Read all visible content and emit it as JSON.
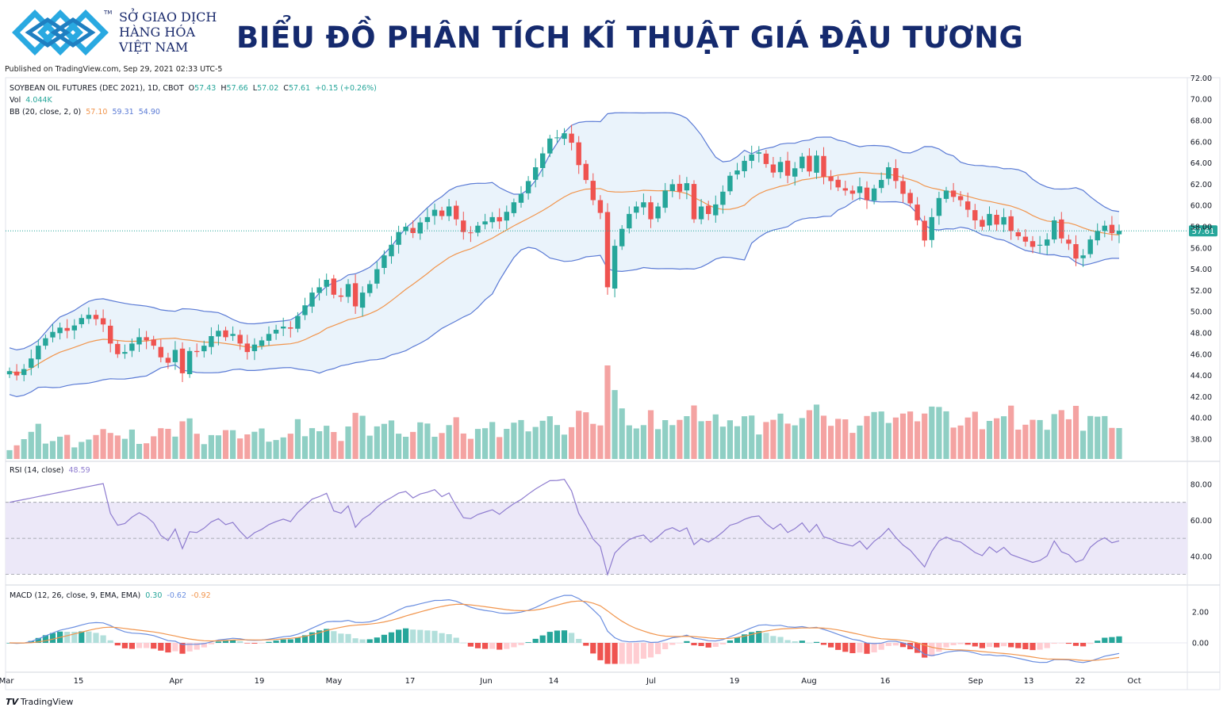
{
  "header": {
    "org_line1": "SỞ GIAO DỊCH",
    "org_line2": "HÀNG HÓA",
    "org_line3": "VIỆT NAM",
    "tm": "TM",
    "title": "BIỂU ĐỒ PHÂN TÍCH KĨ THUẬT GIÁ ĐẬU TƯƠNG",
    "logo_icon": "mxv-diamond-logo-icon",
    "brand_color": "#1a2a6c",
    "logo_color": "#29a9e1"
  },
  "published": "Published on TradingView.com, Sep 29, 2021 02:33 UTC-5",
  "legend": {
    "symbol": "SOYBEAN OIL FUTURES (DEC 2021), 1D, CBOT",
    "o_label": "O",
    "o_value": "57.43",
    "h_label": "H",
    "h_value": "57.66",
    "l_label": "L",
    "l_value": "57.02",
    "c_label": "C",
    "c_value": "57.61",
    "change": "+0.15 (+0.26%)",
    "vol_label": "Vol",
    "vol_value": "4.044K",
    "bb_label": "BB (20, close, 2, 0)",
    "bb_mid": "57.10",
    "bb_upper": "59.31",
    "bb_lower": "54.90",
    "rsi_label": "RSI (14, close)",
    "rsi_value": "48.59",
    "macd_label": "MACD (12, 26, close, 9, EMA, EMA)",
    "macd_hist": "0.30",
    "macd_line": "-0.62",
    "macd_signal": "-0.92"
  },
  "price_label": "57.61",
  "footer": {
    "brand": "TradingView",
    "icon": "tradingview-logo-icon"
  },
  "colors": {
    "up": "#26a69a",
    "down": "#ef5350",
    "vol_up": "#8fcfc4",
    "vol_down": "#f4a3a2",
    "bb_band": "#5b7bd5",
    "bb_basis": "#f1954d",
    "bb_fill": "#eaf3fb",
    "rsi_line": "#8e7ccf",
    "rsi_fill": "#ece8f8",
    "macd_line": "#6a8ee0",
    "signal_line": "#f1954d",
    "hist_up_strong": "#26a69a",
    "hist_up_weak": "#b2dfdb",
    "hist_down_strong": "#ef5350",
    "hist_down_weak": "#ffcdd2"
  },
  "chart_data": {
    "type": "candlestick",
    "title": "SOYBEAN OIL FUTURES (DEC 2021), 1D, CBOT",
    "x_labels": [
      "Mar",
      "15",
      "Apr",
      "19",
      "May",
      "17",
      "Jun",
      "14",
      "Jul",
      "19",
      "Aug",
      "16",
      "Sep",
      "13",
      "22",
      "Oct"
    ],
    "price_axis": {
      "ticks": [
        "72.00",
        "70.00",
        "68.00",
        "66.00",
        "64.00",
        "62.00",
        "60.00",
        "58.00",
        "56.00",
        "54.00",
        "52.00",
        "50.00",
        "48.00",
        "46.00",
        "44.00",
        "42.00",
        "40.00",
        "38.00"
      ],
      "ylim": [
        37,
        72
      ]
    },
    "rsi_axis": {
      "ticks": [
        "80.00",
        "60.00",
        "40.00"
      ],
      "ylim": [
        20,
        90
      ],
      "bands": [
        30,
        50,
        70
      ]
    },
    "macd_axis": {
      "ticks": [
        "2.00",
        "0.00"
      ],
      "ylim": [
        -1.4,
        3.5
      ]
    },
    "close": [
      44.4,
      44.0,
      44.6,
      45.6,
      46.8,
      47.5,
      48.1,
      48.5,
      48.2,
      48.7,
      49.4,
      49.7,
      49.3,
      48.8,
      47.0,
      46.0,
      46.2,
      47.0,
      47.6,
      47.3,
      46.8,
      45.7,
      45.2,
      46.4,
      44.2,
      46.3,
      46.2,
      46.8,
      47.7,
      48.2,
      47.6,
      47.9,
      47.0,
      46.2,
      46.9,
      47.3,
      47.9,
      48.3,
      48.6,
      48.4,
      49.6,
      50.6,
      51.8,
      52.3,
      53.0,
      51.6,
      51.4,
      52.6,
      50.5,
      51.8,
      52.6,
      54.0,
      55.3,
      56.3,
      57.5,
      58.0,
      57.4,
      58.4,
      58.9,
      59.6,
      59.0,
      59.9,
      58.7,
      57.5,
      57.4,
      58.1,
      58.5,
      58.9,
      58.5,
      59.4,
      60.3,
      61.1,
      62.3,
      63.6,
      64.9,
      66.3,
      66.4,
      66.8,
      65.9,
      63.8,
      62.4,
      60.5,
      59.3,
      52.3,
      56.2,
      57.8,
      59.2,
      59.9,
      60.3,
      58.7,
      59.9,
      61.4,
      62.0,
      61.3,
      62.1,
      58.7,
      59.9,
      59.2,
      60.1,
      61.3,
      62.8,
      63.3,
      64.2,
      64.8,
      65.0,
      63.9,
      63.1,
      64.1,
      62.8,
      63.5,
      64.6,
      63.2,
      64.7,
      62.7,
      62.3,
      61.7,
      61.4,
      61.1,
      61.8,
      60.5,
      61.6,
      62.4,
      63.6,
      62.3,
      61.1,
      60.2,
      58.6,
      56.7,
      58.9,
      60.7,
      61.4,
      60.8,
      60.5,
      59.6,
      58.6,
      58.0,
      59.2,
      58.2,
      58.9,
      57.6,
      57.1,
      56.6,
      56.1,
      56.3,
      56.8,
      58.6,
      56.9,
      56.4,
      55.0,
      55.3,
      56.8,
      57.6,
      58.1,
      57.4,
      57.61
    ],
    "volume_note": "Vol 4.044K",
    "bollinger": {
      "period": 20,
      "mult": 2,
      "last": {
        "basis": 57.1,
        "upper": 59.31,
        "lower": 54.9
      }
    },
    "rsi_last": 48.59,
    "macd_last": {
      "hist": 0.3,
      "macd": -0.62,
      "signal": -0.92
    }
  }
}
